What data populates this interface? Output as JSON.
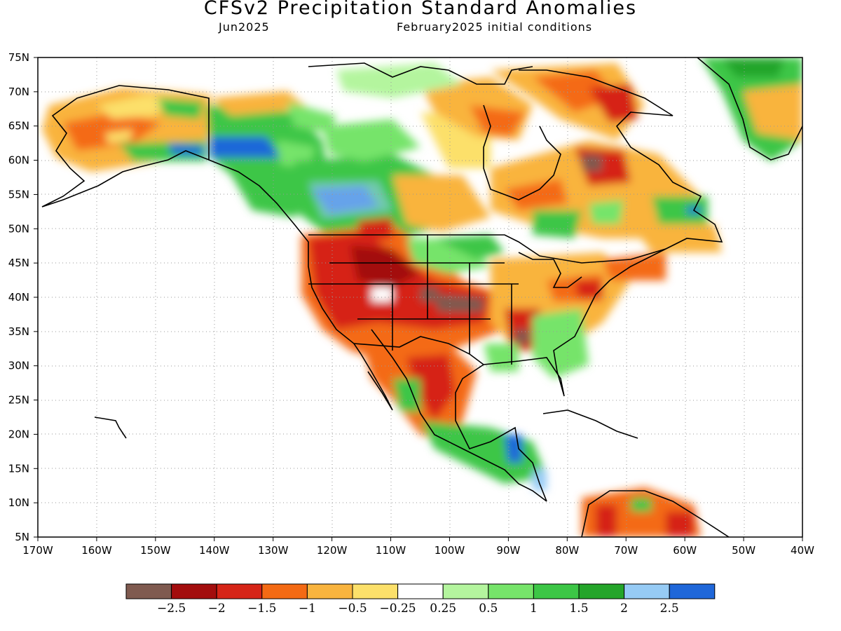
{
  "title": "CFSv2 Precipitation Standard Anomalies",
  "subtitle_left": "Jun2025",
  "subtitle_right": "February2025 initial conditions",
  "map": {
    "lat_ticks": [
      "75N",
      "70N",
      "65N",
      "60N",
      "55N",
      "50N",
      "45N",
      "40N",
      "35N",
      "30N",
      "25N",
      "20N",
      "15N",
      "10N",
      "5N"
    ],
    "lon_ticks": [
      "170W",
      "160W",
      "150W",
      "140W",
      "130W",
      "120W",
      "110W",
      "100W",
      "90W",
      "80W",
      "70W",
      "60W",
      "50W",
      "40W"
    ],
    "land_outline_color": "#000000",
    "grid": "dotted"
  },
  "colorbar": {
    "colors": [
      "#7f5a4f",
      "#a30d0d",
      "#d62417",
      "#f46a14",
      "#f9b43e",
      "#fce06a",
      "#ffffff",
      "#b4f59e",
      "#76e46a",
      "#3cc646",
      "#24a52a",
      "#96cbf5",
      "#1f67d9"
    ],
    "labels": [
      "−2.5",
      "−2",
      "−1.5",
      "−1",
      "−0.5",
      "−0.25",
      "0.25",
      "0.5",
      "1",
      "1.5",
      "2",
      "2.5"
    ]
  }
}
